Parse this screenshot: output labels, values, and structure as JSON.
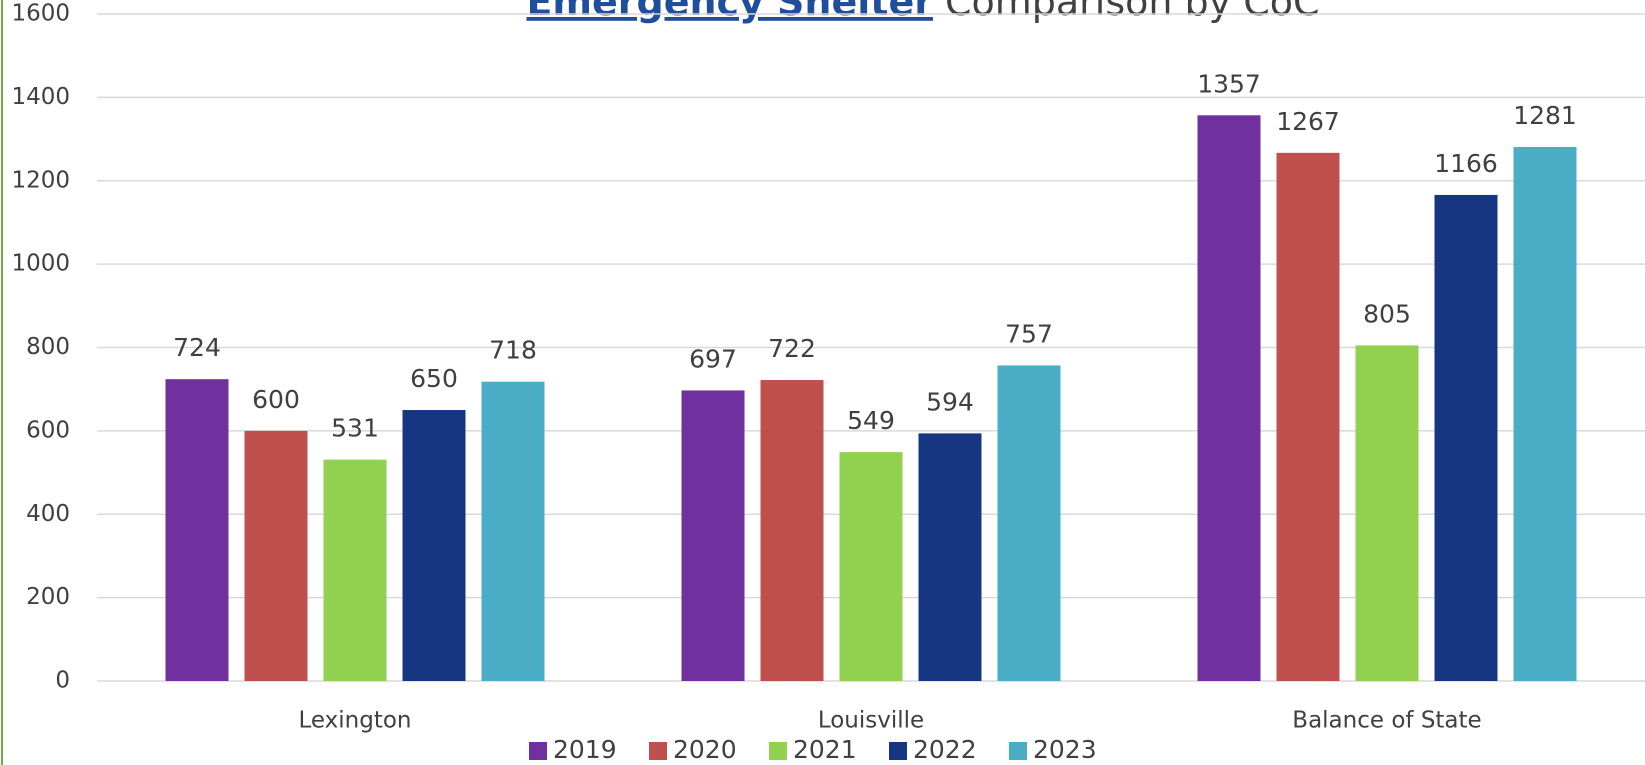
{
  "chart_data": {
    "type": "bar",
    "title": {
      "highlight": "Emergency Shelter",
      "rest": "Comparison by CoC"
    },
    "categories": [
      "Lexington",
      "Louisville",
      "Balance of State"
    ],
    "series": [
      {
        "name": "2019",
        "color": "#7030a0",
        "values": [
          724,
          697,
          1357
        ]
      },
      {
        "name": "2020",
        "color": "#c0504d",
        "values": [
          600,
          722,
          1267
        ]
      },
      {
        "name": "2021",
        "color": "#92d050",
        "values": [
          531,
          549,
          805
        ]
      },
      {
        "name": "2022",
        "color": "#173682",
        "values": [
          650,
          594,
          1166
        ]
      },
      {
        "name": "2023",
        "color": "#4bacc6",
        "values": [
          718,
          757,
          1281
        ]
      }
    ],
    "ylim": [
      0,
      1600
    ],
    "yticks": [
      0,
      200,
      400,
      600,
      800,
      1000,
      1200,
      1400,
      1600
    ],
    "grid": true,
    "legend": "bottom"
  }
}
